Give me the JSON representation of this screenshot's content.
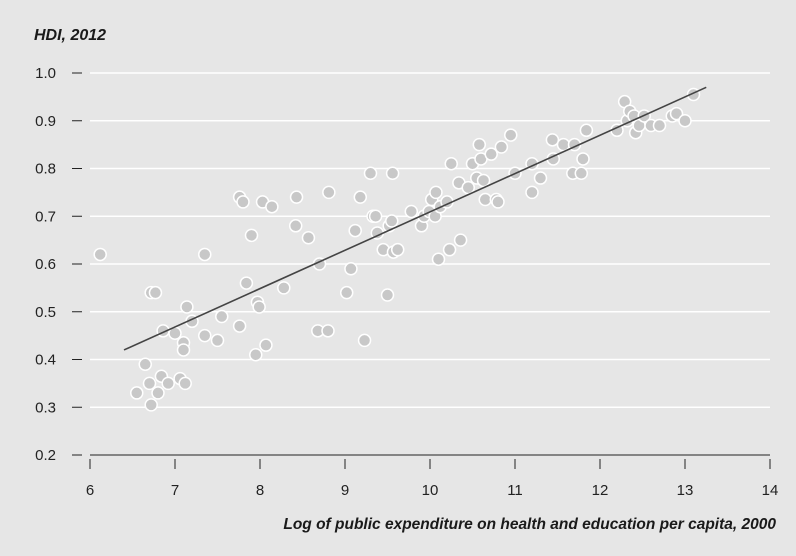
{
  "chart_data": {
    "type": "scatter",
    "title": "",
    "ylabel": "HDI, 2012",
    "xlabel": "Log of public expenditure on health and education per capita, 2000",
    "xlim": [
      6,
      14
    ],
    "ylim": [
      0.2,
      1.0
    ],
    "xticks": [
      "6",
      "7",
      "8",
      "9",
      "10",
      "11",
      "12",
      "13",
      "14"
    ],
    "yticks": [
      "0.2",
      "0.3",
      "0.4",
      "0.5",
      "0.6",
      "0.7",
      "0.8",
      "0.9",
      "1.0"
    ],
    "grid": "horizontal",
    "colors": {
      "background": "#e6e6e6",
      "grid": "#ffffff",
      "point": "#c8c8c8",
      "point_edge": "#ffffff",
      "trend": "#444444"
    },
    "trendline": {
      "x": [
        6.4,
        13.25
      ],
      "y": [
        0.42,
        0.97
      ]
    },
    "points": [
      {
        "x": 6.12,
        "y": 0.62
      },
      {
        "x": 6.55,
        "y": 0.33
      },
      {
        "x": 6.65,
        "y": 0.39
      },
      {
        "x": 6.7,
        "y": 0.35
      },
      {
        "x": 6.72,
        "y": 0.305
      },
      {
        "x": 6.72,
        "y": 0.54
      },
      {
        "x": 6.77,
        "y": 0.54
      },
      {
        "x": 6.8,
        "y": 0.33
      },
      {
        "x": 6.84,
        "y": 0.365
      },
      {
        "x": 6.86,
        "y": 0.46
      },
      {
        "x": 6.92,
        "y": 0.35
      },
      {
        "x": 7.0,
        "y": 0.455
      },
      {
        "x": 7.06,
        "y": 0.36
      },
      {
        "x": 7.1,
        "y": 0.435
      },
      {
        "x": 7.1,
        "y": 0.42
      },
      {
        "x": 7.12,
        "y": 0.35
      },
      {
        "x": 7.14,
        "y": 0.51
      },
      {
        "x": 7.2,
        "y": 0.48
      },
      {
        "x": 7.35,
        "y": 0.62
      },
      {
        "x": 7.35,
        "y": 0.45
      },
      {
        "x": 7.5,
        "y": 0.44
      },
      {
        "x": 7.55,
        "y": 0.49
      },
      {
        "x": 7.76,
        "y": 0.74
      },
      {
        "x": 7.76,
        "y": 0.47
      },
      {
        "x": 7.8,
        "y": 0.73
      },
      {
        "x": 7.84,
        "y": 0.56
      },
      {
        "x": 7.9,
        "y": 0.66
      },
      {
        "x": 7.95,
        "y": 0.41
      },
      {
        "x": 7.97,
        "y": 0.52
      },
      {
        "x": 7.99,
        "y": 0.51
      },
      {
        "x": 8.03,
        "y": 0.73
      },
      {
        "x": 8.07,
        "y": 0.43
      },
      {
        "x": 8.14,
        "y": 0.72
      },
      {
        "x": 8.28,
        "y": 0.55
      },
      {
        "x": 8.42,
        "y": 0.68
      },
      {
        "x": 8.43,
        "y": 0.74
      },
      {
        "x": 8.57,
        "y": 0.655
      },
      {
        "x": 8.68,
        "y": 0.46
      },
      {
        "x": 8.7,
        "y": 0.6
      },
      {
        "x": 8.8,
        "y": 0.46
      },
      {
        "x": 8.81,
        "y": 0.75
      },
      {
        "x": 9.02,
        "y": 0.54
      },
      {
        "x": 9.07,
        "y": 0.59
      },
      {
        "x": 9.12,
        "y": 0.67
      },
      {
        "x": 9.18,
        "y": 0.74
      },
      {
        "x": 9.23,
        "y": 0.44
      },
      {
        "x": 9.3,
        "y": 0.79
      },
      {
        "x": 9.33,
        "y": 0.7
      },
      {
        "x": 9.36,
        "y": 0.7
      },
      {
        "x": 9.38,
        "y": 0.665
      },
      {
        "x": 9.45,
        "y": 0.63
      },
      {
        "x": 9.5,
        "y": 0.535
      },
      {
        "x": 9.52,
        "y": 0.68
      },
      {
        "x": 9.55,
        "y": 0.69
      },
      {
        "x": 9.56,
        "y": 0.79
      },
      {
        "x": 9.57,
        "y": 0.625
      },
      {
        "x": 9.62,
        "y": 0.63
      },
      {
        "x": 9.78,
        "y": 0.71
      },
      {
        "x": 9.9,
        "y": 0.68
      },
      {
        "x": 9.93,
        "y": 0.7
      },
      {
        "x": 9.99,
        "y": 0.71
      },
      {
        "x": 10.02,
        "y": 0.735
      },
      {
        "x": 10.06,
        "y": 0.7
      },
      {
        "x": 10.07,
        "y": 0.75
      },
      {
        "x": 10.1,
        "y": 0.61
      },
      {
        "x": 10.12,
        "y": 0.72
      },
      {
        "x": 10.2,
        "y": 0.73
      },
      {
        "x": 10.23,
        "y": 0.63
      },
      {
        "x": 10.25,
        "y": 0.81
      },
      {
        "x": 10.34,
        "y": 0.77
      },
      {
        "x": 10.36,
        "y": 0.65
      },
      {
        "x": 10.45,
        "y": 0.76
      },
      {
        "x": 10.5,
        "y": 0.81
      },
      {
        "x": 10.55,
        "y": 0.78
      },
      {
        "x": 10.58,
        "y": 0.85
      },
      {
        "x": 10.6,
        "y": 0.82
      },
      {
        "x": 10.63,
        "y": 0.775
      },
      {
        "x": 10.65,
        "y": 0.735
      },
      {
        "x": 10.72,
        "y": 0.83
      },
      {
        "x": 10.78,
        "y": 0.735
      },
      {
        "x": 10.8,
        "y": 0.73
      },
      {
        "x": 10.84,
        "y": 0.845
      },
      {
        "x": 10.95,
        "y": 0.87
      },
      {
        "x": 11.0,
        "y": 0.79
      },
      {
        "x": 11.2,
        "y": 0.81
      },
      {
        "x": 11.2,
        "y": 0.75
      },
      {
        "x": 11.3,
        "y": 0.78
      },
      {
        "x": 11.44,
        "y": 0.86
      },
      {
        "x": 11.45,
        "y": 0.82
      },
      {
        "x": 11.57,
        "y": 0.85
      },
      {
        "x": 11.68,
        "y": 0.79
      },
      {
        "x": 11.7,
        "y": 0.85
      },
      {
        "x": 11.78,
        "y": 0.79
      },
      {
        "x": 11.8,
        "y": 0.82
      },
      {
        "x": 11.84,
        "y": 0.88
      },
      {
        "x": 12.2,
        "y": 0.88
      },
      {
        "x": 12.29,
        "y": 0.94
      },
      {
        "x": 12.32,
        "y": 0.9
      },
      {
        "x": 12.35,
        "y": 0.92
      },
      {
        "x": 12.4,
        "y": 0.91
      },
      {
        "x": 12.42,
        "y": 0.875
      },
      {
        "x": 12.46,
        "y": 0.89
      },
      {
        "x": 12.52,
        "y": 0.91
      },
      {
        "x": 12.6,
        "y": 0.89
      },
      {
        "x": 12.7,
        "y": 0.89
      },
      {
        "x": 12.85,
        "y": 0.91
      },
      {
        "x": 12.9,
        "y": 0.915
      },
      {
        "x": 13.0,
        "y": 0.9
      },
      {
        "x": 13.1,
        "y": 0.955
      }
    ]
  }
}
